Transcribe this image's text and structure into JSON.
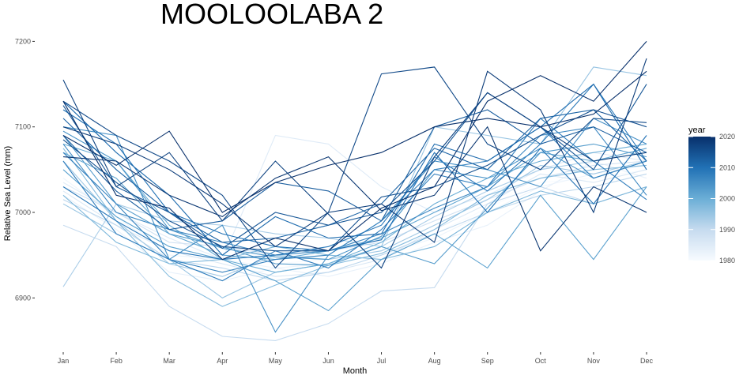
{
  "chart_data": {
    "type": "line",
    "title": "MOOLOOLABA 2",
    "xlabel": "Month",
    "ylabel": "Relative Sea Level (mm)",
    "categories": [
      "Jan",
      "Feb",
      "Mar",
      "Apr",
      "May",
      "Jun",
      "Jul",
      "Aug",
      "Sep",
      "Oct",
      "Nov",
      "Dec"
    ],
    "y_ticks": [
      6900,
      7000,
      7100,
      7200
    ],
    "ylim": [
      6840,
      7205
    ],
    "grid": false,
    "legend": {
      "title": "year",
      "type": "colorbar",
      "placement": "right",
      "range": [
        1980,
        2020
      ],
      "ticks": [
        1980,
        1990,
        2000,
        2010,
        2020
      ],
      "colors": [
        "#f7fbff",
        "#c6dbef",
        "#6baed6",
        "#2171b5",
        "#08306b"
      ]
    },
    "series": [
      {
        "year": 1980,
        "values": [
          7030,
          6990,
          6960,
          6950,
          6940,
          6945,
          6955,
          6975,
          7005,
          7035,
          7040,
          7050
        ]
      },
      {
        "year": 1982,
        "values": [
          7040,
          6995,
          6950,
          6945,
          6935,
          6940,
          6950,
          6970,
          7000,
          7030,
          7045,
          7055
        ]
      },
      {
        "year": 1983,
        "values": [
          7020,
          6980,
          6930,
          6920,
          6935,
          6925,
          6940,
          6965,
          6985,
          7025,
          7060,
          7040
        ]
      },
      {
        "year": 1985,
        "values": [
          7035,
          7000,
          6970,
          6945,
          7090,
          7080,
          7030,
          7000,
          7020,
          7050,
          7070,
          7060
        ]
      },
      {
        "year": 1986,
        "values": [
          7025,
          6985,
          6955,
          6940,
          6925,
          6930,
          6945,
          6980,
          7010,
          7045,
          7035,
          7050
        ]
      },
      {
        "year": 1988,
        "values": [
          7030,
          7000,
          6965,
          6960,
          6950,
          6955,
          6965,
          6990,
          7015,
          7040,
          7055,
          7060
        ]
      },
      {
        "year": 1990,
        "values": [
          6985,
          6960,
          6890,
          6855,
          6850,
          6870,
          6908,
          6912,
          7010,
          7030,
          7010,
          7030
        ]
      },
      {
        "year": 1991,
        "values": [
          7015,
          6985,
          6945,
          6935,
          6920,
          6930,
          6950,
          6975,
          7000,
          7020,
          7030,
          7045
        ]
      },
      {
        "year": 1993,
        "values": [
          6913,
          7010,
          6990,
          6985,
          6975,
          6970,
          6960,
          6995,
          7025,
          7050,
          7060,
          7070
        ]
      },
      {
        "year": 1994,
        "values": [
          7060,
          6990,
          6940,
          6925,
          6950,
          6945,
          6955,
          6985,
          7015,
          7055,
          7045,
          7060
        ]
      },
      {
        "year": 1995,
        "values": [
          7010,
          6975,
          6945,
          6900,
          6930,
          6940,
          6960,
          7100,
          7090,
          7080,
          7170,
          7160
        ]
      },
      {
        "year": 1997,
        "values": [
          7075,
          6990,
          6925,
          6890,
          6915,
          6938,
          6952,
          6980,
          7020,
          7040,
          7050,
          7055
        ]
      },
      {
        "year": 1998,
        "values": [
          7020,
          6965,
          6940,
          6945,
          6960,
          6950,
          6945,
          6960,
          7000,
          7025,
          7010,
          7030
        ]
      },
      {
        "year": 2000,
        "values": [
          7080,
          7060,
          6985,
          6945,
          6930,
          6940,
          6965,
          7010,
          7040,
          7060,
          7070,
          7080
        ]
      },
      {
        "year": 2001,
        "values": [
          7070,
          7040,
          6975,
          6950,
          6945,
          6955,
          6970,
          7000,
          7030,
          7070,
          7060,
          7075
        ]
      },
      {
        "year": 2002,
        "values": [
          7050,
          6995,
          6960,
          6945,
          6920,
          6885,
          6945,
          6975,
          6935,
          7020,
          6945,
          7030
        ]
      },
      {
        "year": 2003,
        "values": [
          7090,
          7010,
          6975,
          6960,
          6940,
          6938,
          6960,
          6940,
          7005,
          7070,
          7080,
          7065
        ]
      },
      {
        "year": 2004,
        "values": [
          7095,
          7060,
          6980,
          6958,
          6948,
          6945,
          6972,
          7050,
          7040,
          7075,
          7040,
          7060
        ]
      },
      {
        "year": 2005,
        "values": [
          7100,
          7090,
          6945,
          6985,
          6860,
          6950,
          6990,
          7060,
          7050,
          7030,
          7110,
          7080
        ]
      },
      {
        "year": 2006,
        "values": [
          7080,
          7000,
          6980,
          6965,
          6950,
          6955,
          6975,
          7005,
          7030,
          7090,
          7100,
          7020
        ]
      },
      {
        "year": 2007,
        "values": [
          7070,
          7010,
          6945,
          6930,
          6945,
          6950,
          6990,
          7050,
          7060,
          7100,
          7040,
          7060
        ]
      },
      {
        "year": 2008,
        "values": [
          7060,
          6975,
          6945,
          6920,
          6955,
          6935,
          6980,
          7045,
          7030,
          7110,
          7060,
          7015
        ]
      },
      {
        "year": 2009,
        "values": [
          7030,
          6990,
          6955,
          6945,
          6950,
          6960,
          6985,
          7065,
          7025,
          7080,
          7150,
          7060
        ]
      },
      {
        "year": 2010,
        "values": [
          7120,
          7080,
          7000,
          6975,
          6960,
          6955,
          6968,
          7070,
          7000,
          7075,
          7010,
          7090
        ]
      },
      {
        "year": 2011,
        "values": [
          7130,
          7070,
          7020,
          6950,
          6995,
          6970,
          6975,
          7080,
          7060,
          7100,
          7150,
          7050
        ]
      },
      {
        "year": 2012,
        "values": [
          7110,
          7050,
          7000,
          6965,
          6970,
          6985,
          7010,
          7075,
          7050,
          7110,
          7120,
          7060
        ]
      },
      {
        "year": 2013,
        "values": [
          7090,
          7025,
          6980,
          6990,
          7035,
          7025,
          6990,
          7100,
          7120,
          7080,
          7100,
          7070
        ]
      },
      {
        "year": 2014,
        "values": [
          7125,
          7030,
          7000,
          6958,
          7000,
          6985,
          7000,
          7060,
          7140,
          7100,
          7050,
          7150
        ]
      },
      {
        "year": 2015,
        "values": [
          7085,
          7035,
          6990,
          6960,
          6955,
          6955,
          7018,
          7030,
          7055,
          7090,
          7120,
          7100
        ]
      },
      {
        "year": 2016,
        "values": [
          7130,
          7090,
          7060,
          7020,
          6935,
          7000,
          7162,
          7170,
          7080,
          7050,
          7110,
          7105
        ]
      },
      {
        "year": 2017,
        "values": [
          7155,
          7030,
          7070,
          6990,
          7060,
          6998,
          6935,
          7065,
          7140,
          7100,
          7060,
          7070
        ]
      },
      {
        "year": 2018,
        "values": [
          7100,
          7080,
          7050,
          7010,
          6960,
          7000,
          7010,
          6965,
          7165,
          7120,
          7000,
          7180
        ]
      },
      {
        "year": 2019,
        "values": [
          7065,
          7060,
          7020,
          6995,
          7040,
          7065,
          7002,
          7020,
          7100,
          6955,
          7030,
          7000
        ]
      },
      {
        "year": 2020,
        "values": [
          7130,
          7020,
          7005,
          6945,
          6970,
          6955,
          7005,
          7030,
          7130,
          7160,
          7130,
          7200
        ]
      },
      {
        "year": 2021,
        "values": [
          7090,
          7055,
          7095,
          7000,
          7035,
          7055,
          7070,
          7100,
          7110,
          7100,
          7115,
          7165
        ]
      }
    ]
  }
}
